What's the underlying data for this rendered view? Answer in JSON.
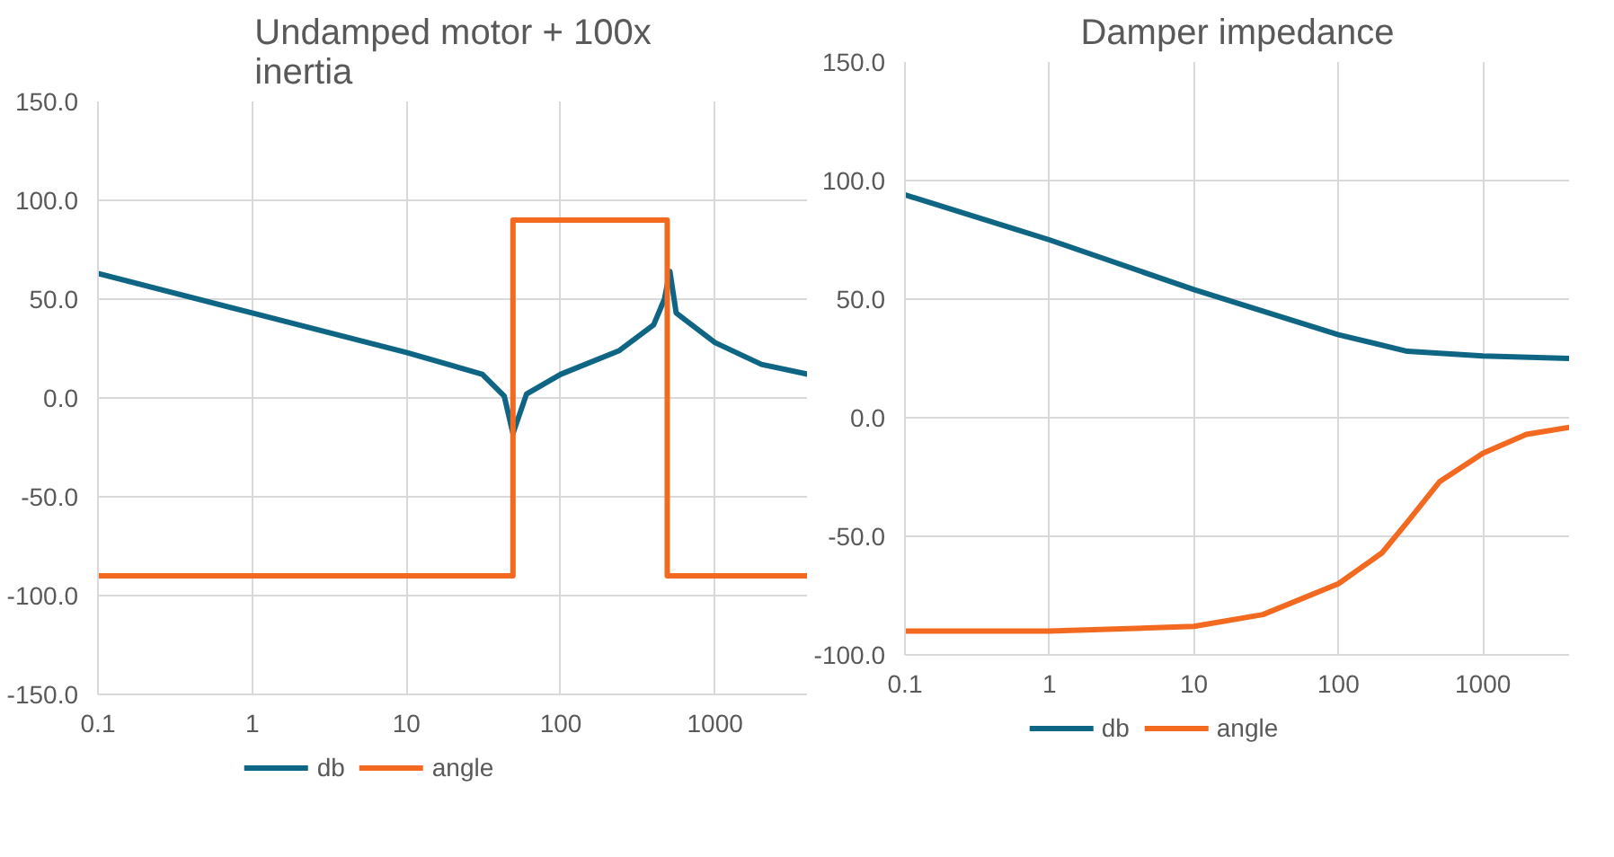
{
  "chart_data": [
    {
      "type": "line",
      "title": "Undamped motor + 100x inertia",
      "log": "x",
      "grid": true,
      "legend": "bottom",
      "xlim": [
        0.1,
        4000
      ],
      "xticks": [
        0.1,
        1,
        10,
        100,
        1000
      ],
      "ylim": [
        -150,
        150
      ],
      "yticks": [
        {
          "value": -150,
          "label": "-150.0"
        },
        {
          "value": -100,
          "label": "-100.0"
        },
        {
          "value": -50,
          "label": "-50.0"
        },
        {
          "value": 0,
          "label": "0.0"
        },
        {
          "value": 50,
          "label": "50.0"
        },
        {
          "value": 100,
          "label": "100.0"
        },
        {
          "value": 150,
          "label": "150.0"
        }
      ],
      "series": [
        {
          "name": "db",
          "color": "#0f6584",
          "x": [
            0.1,
            1,
            10,
            31,
            43,
            49,
            60,
            100,
            240,
            400,
            470,
            510,
            560,
            1000,
            2000,
            4000
          ],
          "values": [
            63,
            43,
            23,
            12,
            1,
            -18,
            2,
            12,
            24,
            37,
            50,
            64,
            43,
            28,
            17,
            12
          ]
        },
        {
          "name": "angle",
          "color": "#f2691f",
          "x": [
            0.1,
            49,
            49,
            490,
            490,
            4000
          ],
          "values": [
            -90,
            -90,
            90,
            90,
            -90,
            -90
          ]
        }
      ]
    },
    {
      "type": "line",
      "title": "Damper impedance",
      "log": "x",
      "grid": true,
      "legend": "bottom",
      "xlim": [
        0.1,
        4000
      ],
      "xticks": [
        0.1,
        1,
        10,
        100,
        1000
      ],
      "ylim": [
        -100,
        150
      ],
      "yticks": [
        {
          "value": -100,
          "label": "-100.0"
        },
        {
          "value": -50,
          "label": "-50.0"
        },
        {
          "value": 0,
          "label": "0.0"
        },
        {
          "value": 50,
          "label": "50.0"
        },
        {
          "value": 100,
          "label": "100.0"
        },
        {
          "value": 150,
          "label": "150.0"
        }
      ],
      "series": [
        {
          "name": "db",
          "color": "#0f6584",
          "x": [
            0.1,
            1,
            10,
            100,
            300,
            1000,
            4000
          ],
          "values": [
            94,
            75,
            54,
            35,
            28,
            26,
            25
          ]
        },
        {
          "name": "angle",
          "color": "#f2691f",
          "x": [
            0.1,
            1,
            10,
            30,
            100,
            200,
            300,
            500,
            1000,
            2000,
            4000
          ],
          "values": [
            -90,
            -90,
            -88,
            -83,
            -70,
            -57,
            -44,
            -27,
            -15,
            -7,
            -4
          ]
        }
      ]
    }
  ]
}
